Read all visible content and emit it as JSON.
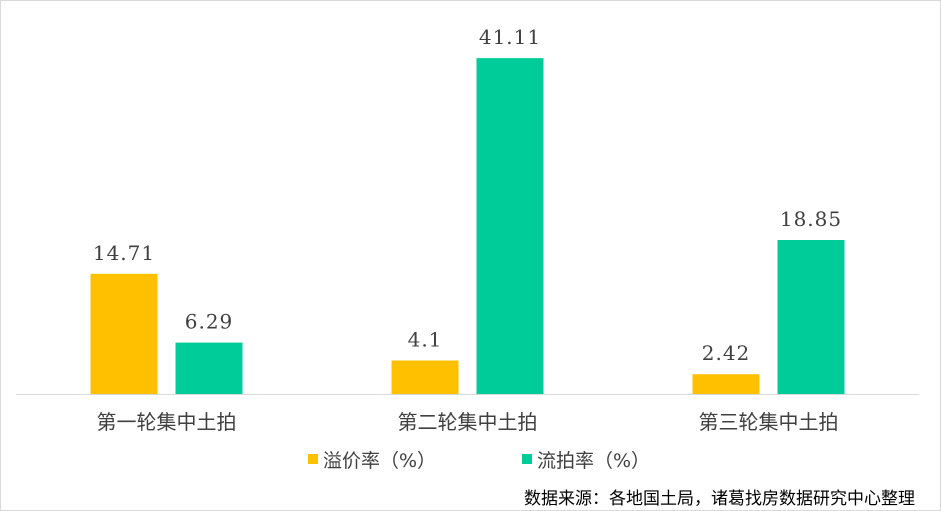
{
  "colors": {
    "series1": "#FFC000",
    "series2": "#00CC99",
    "axis": "#d9d9d9"
  },
  "chart_data": {
    "type": "bar",
    "categories": [
      "第一轮集中土拍",
      "第二轮集中土拍",
      "第三轮集中土拍"
    ],
    "series": [
      {
        "name": "溢价率（%）",
        "values": [
          14.71,
          4.1,
          2.42
        ],
        "labels": [
          "14.71",
          "4.1",
          "2.42"
        ]
      },
      {
        "name": "流拍率（%）",
        "values": [
          6.29,
          41.11,
          18.85
        ],
        "labels": [
          "6.29",
          "41.11",
          "18.85"
        ]
      }
    ],
    "ylim": [
      0,
      45
    ],
    "grid": false,
    "legend_position": "bottom",
    "source": "数据来源：各地国土局，诸葛找房数据研究中心整理"
  }
}
